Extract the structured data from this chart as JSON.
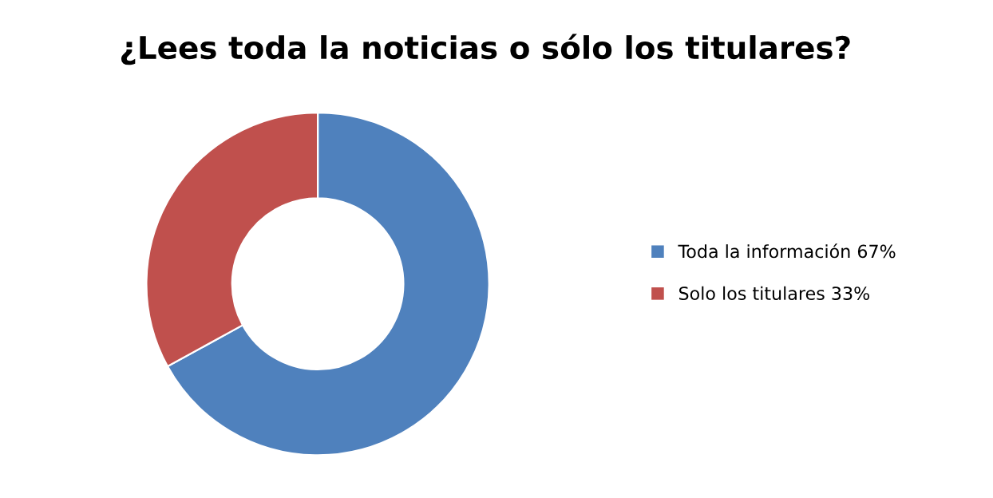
{
  "chart_data": {
    "type": "donut",
    "title": "¿Lees toda la noticias o sólo los titulares?",
    "categories": [
      "Toda la información 67%",
      "Solo los titulares 33%"
    ],
    "values": [
      67,
      33
    ],
    "colors": [
      "#4f81bd",
      "#c0504d"
    ],
    "legend": "right"
  }
}
